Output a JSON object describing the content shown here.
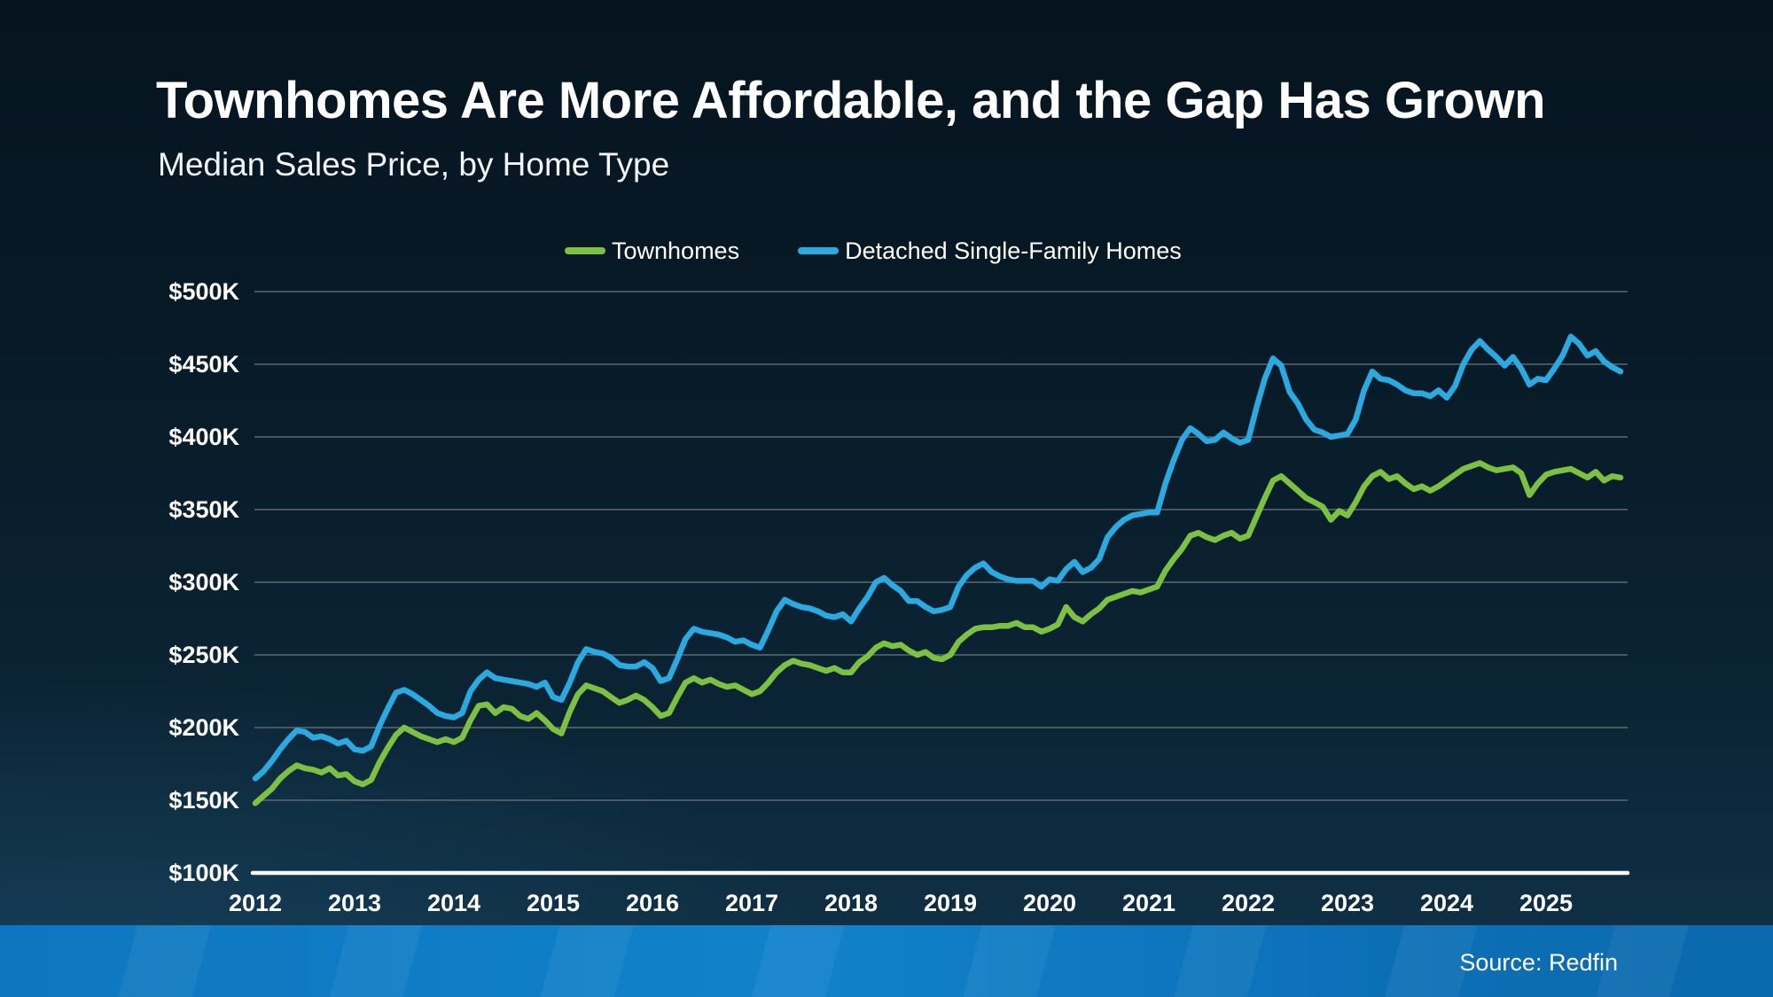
{
  "page": {
    "title": "Townhomes Are More Affordable, and the Gap Has Grown",
    "subtitle": "Median Sales Price, by Home Type",
    "source": "Source: Redfin"
  },
  "legend": [
    {
      "label": "Townhomes",
      "color": "#7cc142"
    },
    {
      "label": "Detached Single-Family Homes",
      "color": "#2bа9e1"
    }
  ],
  "colors": {
    "townhomes_green": "#7cc142",
    "detached_blue": "#2ba9e1",
    "background_top": "#06141f",
    "background_bottom": "#113349",
    "bottom_bar_blue": "#1182cb",
    "gridline": "#5b6a74",
    "axis_line": "#ffffff",
    "text": "#ffffff"
  },
  "chart_data": {
    "type": "line",
    "title": "Townhomes Are More Affordable, and the Gap Has Grown",
    "subtitle": "Median Sales Price, by Home Type",
    "source": "Source: Redfin",
    "unit": "USD thousands",
    "frequency": "monthly",
    "x_start": "2012-01",
    "x_end": "2025-10",
    "x_tick_labels": [
      "2012",
      "2013",
      "2014",
      "2015",
      "2016",
      "2017",
      "2018",
      "2019",
      "2020",
      "2021",
      "2022",
      "2023",
      "2024",
      "2025"
    ],
    "y_tick_labels": [
      "$500K",
      "$450K",
      "$400K",
      "$350K",
      "$300K",
      "$250K",
      "$200K",
      "$150K",
      "$100K"
    ],
    "y_axis_range_thousands": [
      100,
      500
    ],
    "grid": true,
    "legend_position": "top",
    "series": [
      {
        "name": "Townhomes",
        "color": "#7cc142",
        "values": [
          148,
          153,
          158,
          165,
          170,
          174,
          172,
          171,
          169,
          172,
          167,
          168,
          163,
          161,
          164,
          176,
          186,
          195,
          200,
          197,
          194,
          192,
          190,
          192,
          190,
          193,
          205,
          215,
          216,
          210,
          214,
          213,
          208,
          206,
          210,
          205,
          199,
          196,
          211,
          223,
          229,
          227,
          225,
          221,
          217,
          219,
          222,
          219,
          214,
          208,
          210,
          221,
          231,
          234,
          231,
          233,
          230,
          228,
          229,
          226,
          223,
          225,
          231,
          238,
          243,
          246,
          244,
          243,
          241,
          239,
          241,
          238,
          238,
          245,
          249,
          255,
          258,
          256,
          257,
          253,
          250,
          252,
          248,
          247,
          250,
          259,
          264,
          268,
          269,
          269,
          270,
          270,
          272,
          269,
          269,
          266,
          268,
          271,
          283,
          276,
          273,
          278,
          282,
          288,
          290,
          292,
          294,
          293,
          295,
          297,
          308,
          316,
          323,
          332,
          334,
          331,
          329,
          332,
          334,
          330,
          332,
          345,
          358,
          370,
          373,
          368,
          363,
          358,
          355,
          352,
          343,
          349,
          346,
          355,
          366,
          373,
          376,
          371,
          373,
          368,
          364,
          366,
          363,
          366,
          370,
          374,
          378,
          380,
          382,
          379,
          377,
          378,
          379,
          375,
          360,
          368,
          374,
          376,
          377,
          378,
          375,
          372,
          376,
          370,
          373,
          372
        ]
      },
      {
        "name": "Detached Single-Family Homes",
        "color": "#2ba9e1",
        "values": [
          165,
          170,
          177,
          185,
          192,
          198,
          197,
          193,
          194,
          192,
          189,
          191,
          185,
          184,
          187,
          201,
          213,
          224,
          226,
          223,
          219,
          215,
          210,
          208,
          207,
          210,
          225,
          233,
          238,
          234,
          233,
          232,
          231,
          230,
          228,
          231,
          221,
          219,
          231,
          245,
          254,
          252,
          251,
          248,
          243,
          242,
          242,
          245,
          241,
          232,
          234,
          247,
          261,
          268,
          266,
          265,
          264,
          262,
          259,
          260,
          257,
          255,
          267,
          280,
          288,
          285,
          283,
          282,
          280,
          277,
          276,
          278,
          273,
          282,
          290,
          300,
          303,
          298,
          294,
          287,
          287,
          283,
          280,
          281,
          283,
          297,
          305,
          310,
          313,
          307,
          304,
          302,
          301,
          301,
          301,
          297,
          302,
          301,
          309,
          314,
          307,
          310,
          316,
          331,
          338,
          343,
          346,
          347,
          348,
          348,
          368,
          384,
          398,
          406,
          402,
          397,
          398,
          403,
          399,
          396,
          398,
          420,
          440,
          454,
          449,
          431,
          423,
          412,
          405,
          403,
          400,
          401,
          402,
          412,
          432,
          445,
          440,
          439,
          436,
          432,
          430,
          430,
          428,
          432,
          427,
          435,
          450,
          460,
          466,
          460,
          455,
          449,
          455,
          447,
          436,
          440,
          439,
          447,
          456,
          469,
          464,
          456,
          459,
          452,
          448,
          445
        ]
      }
    ]
  }
}
